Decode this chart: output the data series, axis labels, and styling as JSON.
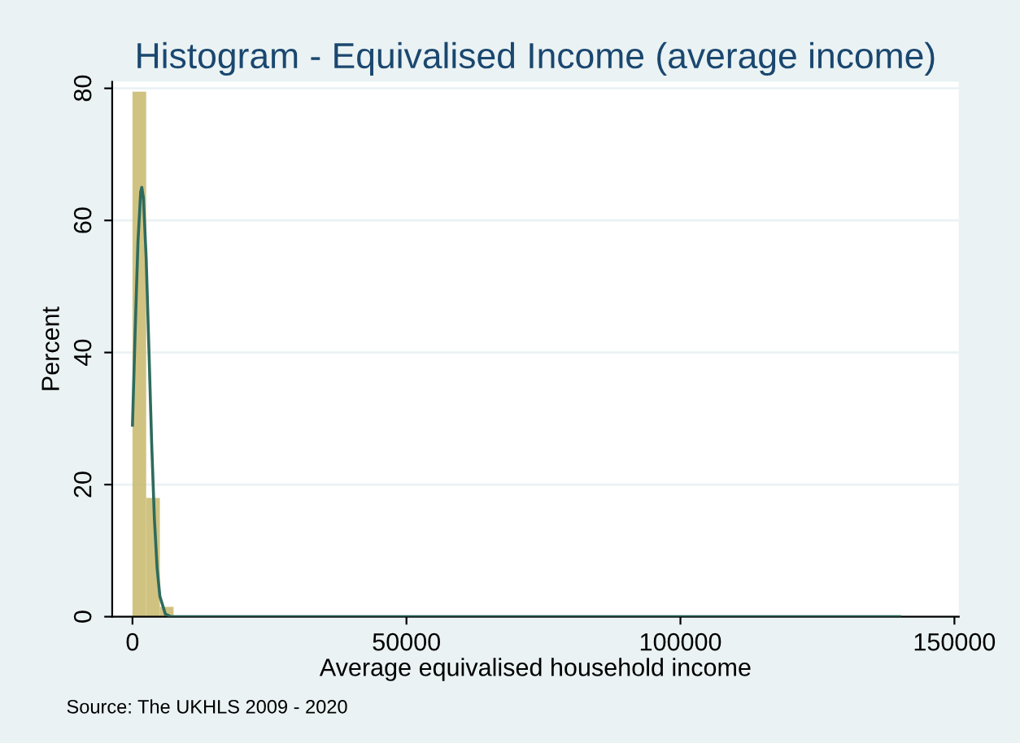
{
  "chart_data": {
    "type": "histogram",
    "title": "Histogram - Equivalised Income (average income)",
    "xlabel": "Average equivalised household income",
    "ylabel": "Percent",
    "annotations": [
      "Source: The UKHLS 2009 - 2020"
    ],
    "bins": [
      0,
      2500,
      5000,
      7500,
      10000,
      12500,
      15000,
      17500,
      20000,
      22500,
      25000,
      27500,
      30000,
      32500,
      35000,
      37500,
      40000,
      42500,
      45000,
      47500,
      50000,
      52500,
      55000,
      57500,
      60000,
      62500,
      65000,
      67500,
      70000,
      72500,
      75000,
      77500,
      80000,
      82500,
      85000,
      87500,
      90000,
      92500,
      95000,
      97500,
      100000,
      102500,
      105000,
      107500,
      110000,
      112500,
      115000,
      117500,
      120000,
      122500,
      125000,
      127500,
      130000,
      132500,
      135000,
      137500,
      140000
    ],
    "values": [
      79.5,
      18,
      1.5,
      null,
      0.1,
      0.1,
      0,
      0,
      0,
      0,
      0,
      0,
      0,
      0,
      0,
      0,
      0,
      0,
      0,
      0,
      0,
      0,
      0,
      0,
      0,
      0,
      0,
      0,
      0,
      0,
      0,
      0,
      0,
      0,
      0,
      0,
      0,
      0,
      0,
      0,
      0,
      0,
      0,
      0,
      0,
      0,
      0,
      0,
      0,
      0,
      0,
      0,
      0,
      0,
      0,
      0
    ],
    "color": "#c8b96b",
    "series": [
      {
        "type": "line",
        "color": "#2e6b5e",
        "x": [
          0,
          500,
          1000,
          1500,
          1700,
          2000,
          2500,
          3000,
          3500,
          4000,
          4500,
          5000,
          6000,
          7000,
          10000,
          50000,
          100000,
          140000
        ],
        "values": [
          29,
          43.5,
          56.7,
          64.3,
          65,
          63.4,
          54.3,
          40.5,
          26.3,
          14.8,
          7.3,
          3.1,
          0.4,
          0,
          0,
          0,
          0,
          0
        ]
      }
    ],
    "xlim": [
      -3700,
      150800
    ],
    "ylim": [
      0,
      81
    ],
    "xticks": [
      0,
      50000,
      100000,
      150000
    ],
    "yticks": [
      0,
      20,
      40,
      60,
      80
    ],
    "grid": "y",
    "legend": false
  }
}
